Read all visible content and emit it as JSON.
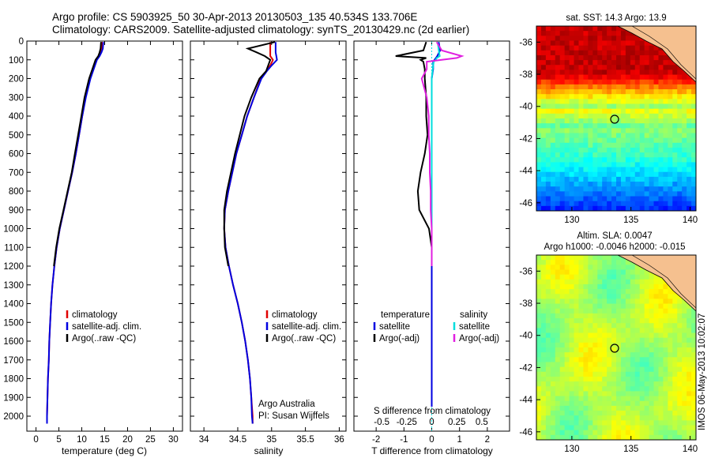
{
  "title": {
    "line1": "Argo profile: CS 5903925_50 30-Apr-2013 20130503_135 40.534S 133.706E",
    "line2": "Climatology: CARS2009. Satellite-adjusted climatology: synTS_20130429.nc (2d earlier)"
  },
  "colors": {
    "climatology": "#e00000",
    "satellite": "#0000e0",
    "argo": "#000000",
    "satellite_salinity": "#00dddd",
    "argo_adj_salinity": "#e020e0"
  },
  "chart_data": [
    {
      "type": "line",
      "name": "temperature-panel",
      "xlabel": "temperature (deg C)",
      "ylabel": "",
      "xlim": [
        -2,
        32
      ],
      "ylim": [
        2080,
        0
      ],
      "xticks": [
        0,
        5,
        10,
        15,
        20,
        25,
        30
      ],
      "yticks": [
        0,
        100,
        200,
        300,
        400,
        500,
        600,
        700,
        800,
        900,
        1000,
        1100,
        1200,
        1300,
        1400,
        1500,
        1600,
        1700,
        1800,
        1900,
        2000
      ],
      "legend": [
        "climatology",
        "satellite-adj. clim.",
        "Argo(..raw -QC)"
      ],
      "legend_position": "lower-right",
      "depth": [
        5,
        40,
        60,
        80,
        100,
        150,
        200,
        300,
        400,
        500,
        600,
        700,
        800,
        900,
        1000,
        1100,
        1200,
        1300,
        1400,
        1500,
        1600,
        1700,
        1800,
        1900,
        2000,
        2040
      ],
      "series": [
        {
          "name": "climatology",
          "values": [
            14.4,
            14.3,
            14.1,
            13.7,
            13.1,
            12.5,
            11.8,
            10.8,
            10.1,
            9.4,
            8.7,
            7.9,
            7.0,
            6.1,
            5.2,
            4.5,
            4.0,
            3.6,
            3.3,
            3.1,
            2.9,
            2.8,
            2.6,
            2.5,
            2.4,
            2.4
          ]
        },
        {
          "name": "satellite-adj. clim.",
          "values": [
            14.7,
            14.6,
            14.3,
            13.9,
            13.3,
            12.6,
            11.9,
            10.9,
            10.1,
            9.4,
            8.7,
            7.9,
            7.0,
            6.1,
            5.2,
            4.5,
            4.0,
            3.6,
            3.3,
            3.1,
            2.9,
            2.8,
            2.6,
            2.5,
            2.4,
            2.4
          ]
        },
        {
          "name": "Argo(..raw -QC)",
          "values": [
            14.2,
            14.1,
            13.9,
            13.6,
            13.0,
            12.3,
            11.6,
            10.6,
            9.9,
            9.2,
            8.5,
            7.8,
            6.9,
            6.0,
            5.1,
            4.4,
            3.9,
            null,
            null,
            null,
            null,
            null,
            null,
            null,
            null,
            null
          ]
        }
      ]
    },
    {
      "type": "line",
      "name": "salinity-panel",
      "xlabel": "salinity",
      "xlim": [
        33.8,
        36.1
      ],
      "ylim": [
        2080,
        0
      ],
      "xticks": [
        34,
        34.5,
        35,
        35.5,
        36
      ],
      "xtick_labels": [
        "34",
        "34.5",
        "35",
        "35.5",
        "36"
      ],
      "legend": [
        "climatology",
        "satellite-adj. clim.",
        "Argo(..raw -QC)"
      ],
      "legend_position": "lower-right",
      "annotation": [
        "Argo Australia",
        "PI: Susan Wijffels"
      ],
      "depth": [
        5,
        40,
        60,
        80,
        100,
        130,
        160,
        200,
        300,
        400,
        500,
        600,
        700,
        800,
        900,
        1000,
        1100,
        1200,
        1300,
        1400,
        1500,
        1600,
        1700,
        1800,
        1900,
        2000,
        2040
      ],
      "series": [
        {
          "name": "climatology",
          "values": [
            34.98,
            34.98,
            34.98,
            34.98,
            35.02,
            34.98,
            34.92,
            34.84,
            34.74,
            34.64,
            34.56,
            34.48,
            34.42,
            34.36,
            34.31,
            34.3,
            34.32,
            34.37,
            34.43,
            34.5,
            34.56,
            34.61,
            34.65,
            34.68,
            34.7,
            34.72,
            34.72
          ]
        },
        {
          "name": "satellite-adj. clim.",
          "values": [
            35.06,
            35.06,
            35.06,
            35.07,
            35.08,
            35.0,
            34.93,
            34.85,
            34.74,
            34.64,
            34.56,
            34.48,
            34.42,
            34.36,
            34.31,
            34.3,
            34.32,
            34.37,
            34.43,
            34.5,
            34.56,
            34.61,
            34.65,
            34.68,
            34.7,
            34.71,
            34.72
          ]
        },
        {
          "name": "Argo(..raw -QC)",
          "values": [
            35.05,
            34.65,
            34.78,
            34.9,
            34.98,
            34.95,
            34.92,
            34.82,
            34.7,
            34.6,
            34.53,
            34.46,
            34.4,
            34.34,
            34.3,
            34.3,
            34.31,
            34.36,
            null,
            null,
            null,
            null,
            null,
            null,
            null,
            null,
            null
          ]
        }
      ]
    },
    {
      "type": "line",
      "name": "difference-panel",
      "xlabel": "T difference from climatology",
      "top_label": "S difference from climatology",
      "xlim": [
        -2.8,
        2.8
      ],
      "ylim": [
        2080,
        0
      ],
      "xticks": [
        -2,
        -1,
        0,
        1,
        2
      ],
      "xtick_labels": [
        "-2",
        "-1",
        "0",
        "1",
        "2"
      ],
      "sticks": [
        -0.5,
        -0.25,
        0,
        0.25,
        0.5
      ],
      "stick_labels": [
        "-0.5",
        "-0.25",
        "0",
        "0.25",
        "0.5"
      ],
      "legend_left": {
        "title": "temperature",
        "items": [
          "satellite",
          "Argo(-adj)"
        ]
      },
      "legend_right": {
        "title": "salinity",
        "items": [
          "satellite",
          "Argo(-adj)"
        ]
      },
      "depth": [
        5,
        50,
        80,
        90,
        100,
        110,
        150,
        200,
        300,
        400,
        500,
        600,
        700,
        800,
        900,
        1000,
        1100,
        1200
      ],
      "series": [
        {
          "name": "T satellite",
          "values": [
            0.25,
            0.3,
            0.2,
            0.15,
            0.1,
            0.05,
            0.05,
            0.0,
            0.0,
            0.0,
            0.0,
            0.0,
            0.0,
            0.0,
            0.0,
            0.0,
            0.0,
            0.0
          ]
        },
        {
          "name": "T Argo(-adj)",
          "values": [
            -0.2,
            -0.3,
            -1.3,
            -0.2,
            -0.4,
            -0.3,
            -0.25,
            -0.25,
            -0.2,
            -0.2,
            -0.15,
            -0.25,
            -0.4,
            -0.5,
            -0.45,
            -0.1,
            0.0,
            0.0
          ]
        },
        {
          "name": "S satellite",
          "values": [
            0.06,
            0.07,
            0.08,
            0.05,
            0.04,
            0.02,
            0.01,
            0.0,
            0.0,
            0.0,
            0.0,
            0.0,
            0.0,
            0.0,
            0.0,
            0.0,
            0.0,
            0.0
          ]
        },
        {
          "name": "S Argo(-adj)",
          "values": [
            0.05,
            0.1,
            0.3,
            0.25,
            0.1,
            -0.05,
            -0.05,
            -0.1,
            -0.05,
            -0.03,
            -0.03,
            -0.02,
            -0.02,
            -0.01,
            -0.01,
            0.0,
            0.0,
            0.0
          ]
        }
      ]
    },
    {
      "type": "heatmap",
      "name": "sst-map",
      "title": "sat. SST: 14.3 Argo: 13.9",
      "xlim": [
        127,
        140.5
      ],
      "ylim": [
        -46.5,
        -35
      ],
      "xticks": [
        130,
        135,
        140
      ],
      "yticks": [
        -36,
        -38,
        -40,
        -42,
        -44,
        -46
      ],
      "profile_location": {
        "lon": 133.706,
        "lat": -40.534
      }
    },
    {
      "type": "heatmap",
      "name": "sla-map",
      "title_line1": "Altim. SLA: 0.0047",
      "title_line2": "Argo h1000: -0.0046 h2000: -0.015",
      "xlim": [
        127,
        140.5
      ],
      "ylim": [
        -46.5,
        -35
      ],
      "xticks": [
        130,
        135,
        140
      ],
      "yticks": [
        -36,
        -38,
        -40,
        -42,
        -44,
        -46
      ],
      "profile_location": {
        "lon": 133.706,
        "lat": -40.534
      }
    }
  ],
  "side_label": "IMOS 06-May-2013 10:02:07"
}
